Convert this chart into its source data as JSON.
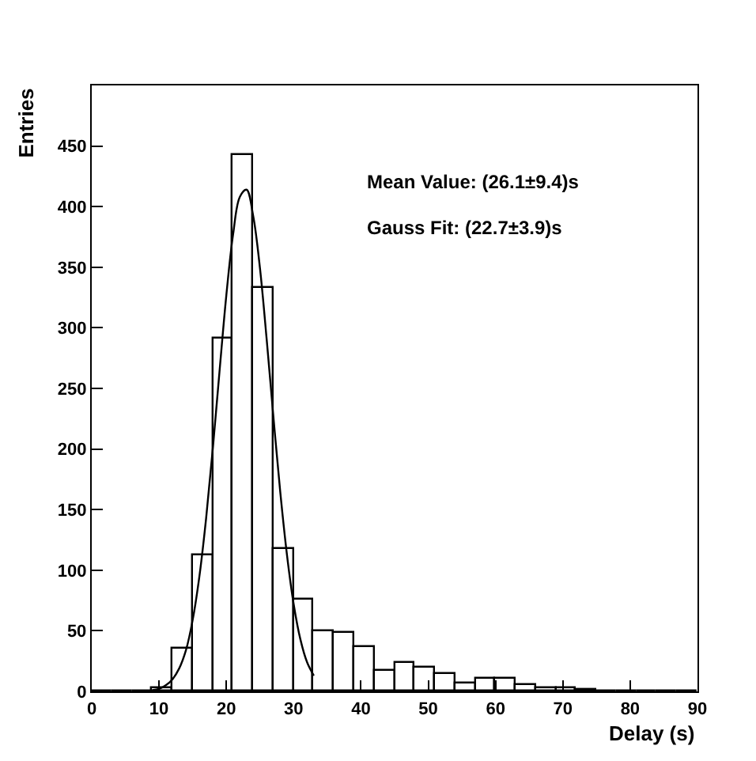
{
  "chart_data": {
    "type": "histogram",
    "xlabel": "Delay (s)",
    "ylabel": "Entries",
    "bins": [
      0,
      3,
      6,
      9,
      12,
      15,
      18,
      21,
      24,
      27,
      30,
      33,
      36,
      39,
      42,
      45,
      48,
      51,
      54,
      57,
      60,
      63,
      66,
      69,
      72,
      75,
      78,
      81,
      84,
      87,
      90
    ],
    "values": [
      0,
      0,
      0,
      2,
      35,
      112,
      291,
      442,
      333,
      118,
      76,
      50,
      48,
      37,
      17,
      24,
      20,
      14,
      6,
      10,
      11,
      5,
      3,
      3,
      1,
      0,
      0,
      0,
      0,
      0
    ],
    "color": "#000000",
    "series": [
      {
        "type": "line",
        "color": "#000000",
        "x": [
          9,
          10,
          11,
          12,
          13,
          14,
          15,
          16,
          17,
          18,
          19,
          20,
          21,
          22,
          23,
          24,
          25,
          26,
          27,
          28,
          29,
          30,
          31,
          32,
          33
        ],
        "values": [
          1,
          2,
          5,
          10,
          19,
          34,
          59,
          95,
          143,
          201,
          265,
          327,
          377,
          408,
          414,
          392,
          349,
          290,
          226,
          165,
          113,
          72,
          43,
          24,
          13
        ]
      }
    ],
    "xlim": [
      0,
      90
    ],
    "xticks": [
      0,
      10,
      20,
      30,
      40,
      50,
      60,
      70,
      80,
      90
    ],
    "ylim": [
      0,
      500
    ],
    "yticks": [
      0,
      50,
      100,
      150,
      200,
      250,
      300,
      350,
      400,
      450
    ],
    "annotations": [
      "Mean Value: (26.1±9.4)s",
      "Gauss Fit: (22.7±3.9)s"
    ]
  }
}
